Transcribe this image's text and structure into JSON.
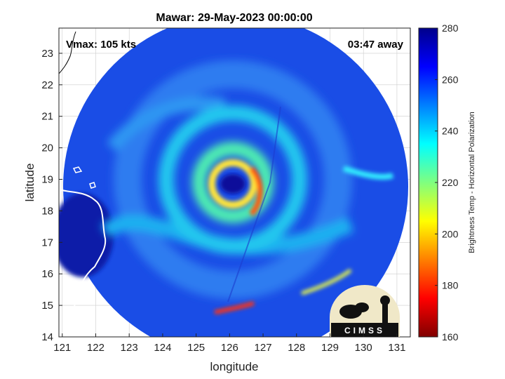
{
  "chart_data": {
    "type": "heatmap",
    "title": "Mawar: 29-May-2023 00:00:00",
    "xlabel": "longitude",
    "ylabel": "latitude",
    "xlim": [
      120.9,
      131.4
    ],
    "ylim": [
      14.0,
      23.8
    ],
    "xticks": [
      "121",
      "122",
      "123",
      "124",
      "125",
      "126",
      "127",
      "128",
      "129",
      "130",
      "131"
    ],
    "yticks": [
      "14",
      "15",
      "16",
      "17",
      "18",
      "19",
      "20",
      "21",
      "22",
      "23"
    ],
    "grid": true,
    "annotations": {
      "vmax": "Vmax: 105 kts",
      "time_away": "03:47 away"
    },
    "storm_center": {
      "lon": 126.2,
      "lat": 18.9
    },
    "swath_radius_deg": 5.6,
    "colorbar": {
      "label": "Brightness Temp - Horizontal Polarization",
      "range": [
        160,
        280
      ],
      "ticks": [
        "160",
        "180",
        "200",
        "220",
        "240",
        "260",
        "280"
      ],
      "colormap": "jet"
    },
    "logo": "CIMSS"
  }
}
